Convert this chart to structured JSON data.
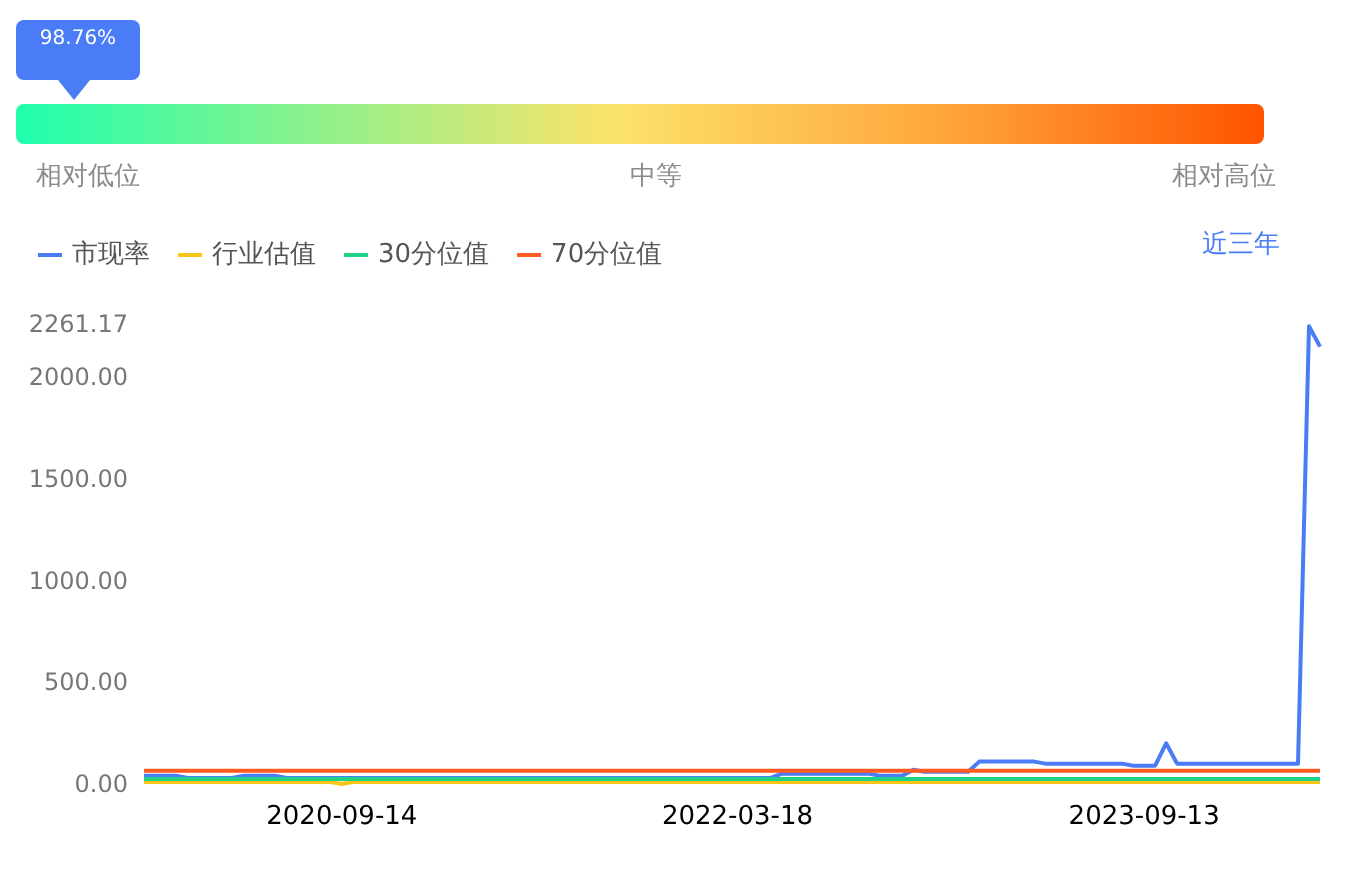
{
  "chart_data": [
    {
      "type": "other",
      "annotations": [
        "98.76%",
        "相对低位",
        "中等",
        "相对高位"
      ]
    },
    {
      "type": "line",
      "marker": "none",
      "legend": "top left",
      "grid": false,
      "annotations": [
        "近三年"
      ],
      "categories": [
        null,
        null,
        null,
        null,
        null,
        null,
        null,
        null,
        null,
        null,
        null,
        null,
        null,
        null,
        null,
        null,
        null,
        null,
        "2020-09-14",
        null,
        null,
        null,
        null,
        null,
        null,
        null,
        null,
        null,
        null,
        null,
        null,
        null,
        null,
        null,
        null,
        null,
        null,
        null,
        null,
        null,
        null,
        null,
        null,
        null,
        null,
        null,
        null,
        null,
        null,
        null,
        null,
        null,
        null,
        null,
        "2022-03-18",
        null,
        null,
        null,
        null,
        null,
        null,
        null,
        null,
        null,
        null,
        null,
        null,
        null,
        null,
        null,
        null,
        null,
        null,
        null,
        null,
        null,
        null,
        null,
        null,
        null,
        null,
        null,
        null,
        null,
        null,
        null,
        null,
        null,
        null,
        null,
        null,
        "2023-09-13",
        null,
        null,
        null,
        null,
        null,
        null,
        null,
        null,
        null,
        null,
        null,
        null,
        null,
        null,
        null,
        null
      ],
      "ylim": [
        0,
        2261.17
      ],
      "yticks": [
        {
          "value": 0,
          "label": "0.00"
        },
        {
          "value": 500,
          "label": "500.00"
        },
        {
          "value": 1000,
          "label": "1000.00"
        },
        {
          "value": 1500,
          "label": "1500.00"
        },
        {
          "value": 2000,
          "label": "2000.00"
        },
        {
          "value": 2261.17,
          "label": "2261.17"
        }
      ],
      "series": [
        {
          "name": "市现率",
          "color": "#4a7cf6",
          "values": [
            40,
            40,
            40,
            40,
            30,
            30,
            30,
            30,
            30,
            40,
            40,
            40,
            40,
            30,
            30,
            30,
            30,
            30,
            30,
            30,
            30,
            30,
            30,
            30,
            30,
            30,
            30,
            30,
            30,
            30,
            30,
            30,
            30,
            30,
            30,
            30,
            30,
            30,
            30,
            30,
            30,
            30,
            30,
            30,
            30,
            30,
            30,
            30,
            30,
            30,
            30,
            30,
            30,
            30,
            30,
            30,
            30,
            30,
            50,
            50,
            50,
            50,
            50,
            50,
            50,
            50,
            50,
            40,
            40,
            40,
            70,
            60,
            60,
            60,
            60,
            60,
            110,
            110,
            110,
            110,
            110,
            110,
            100,
            100,
            100,
            100,
            100,
            100,
            100,
            100,
            90,
            90,
            90,
            200,
            100,
            100,
            100,
            100,
            100,
            100,
            100,
            100,
            100,
            100,
            100,
            100,
            2250,
            2150
          ]
        },
        {
          "name": "行业估值",
          "color": "#f5c518",
          "values": [
            10,
            10,
            10,
            10,
            10,
            10,
            10,
            10,
            10,
            10,
            10,
            10,
            10,
            10,
            10,
            10,
            10,
            10,
            0,
            10,
            10,
            10,
            10,
            10,
            10,
            10,
            10,
            10,
            10,
            10,
            10,
            10,
            10,
            10,
            10,
            10,
            10,
            10,
            10,
            10,
            10,
            10,
            10,
            10,
            10,
            10,
            10,
            10,
            10,
            10,
            10,
            10,
            10,
            10,
            10,
            10,
            10,
            10,
            10,
            10,
            10,
            10,
            10,
            10,
            10,
            10,
            10,
            10,
            10,
            10,
            10,
            10,
            10,
            10,
            10,
            10,
            10,
            10,
            10,
            10,
            10,
            10,
            10,
            10,
            10,
            10,
            10,
            10,
            10,
            10,
            10,
            10,
            10,
            10,
            10,
            10,
            10,
            10,
            10,
            10,
            10,
            10,
            10,
            10,
            10,
            10,
            10,
            10
          ]
        },
        {
          "name": "30分位值",
          "color": "#1fd286",
          "values": [
            25,
            25,
            25,
            25,
            25,
            25,
            25,
            25,
            25,
            25,
            25,
            25,
            25,
            25,
            25,
            25,
            25,
            25,
            25,
            25,
            25,
            25,
            25,
            25,
            25,
            25,
            25,
            25,
            25,
            25,
            25,
            25,
            25,
            25,
            25,
            25,
            25,
            25,
            25,
            25,
            25,
            25,
            25,
            25,
            25,
            25,
            25,
            25,
            25,
            25,
            25,
            25,
            25,
            25,
            25,
            25,
            25,
            25,
            25,
            25,
            25,
            25,
            25,
            25,
            25,
            25,
            25,
            25,
            25,
            25,
            25,
            25,
            25,
            25,
            25,
            25,
            25,
            25,
            25,
            25,
            25,
            25,
            25,
            25,
            25,
            25,
            25,
            25,
            25,
            25,
            25,
            25,
            25,
            25,
            25,
            25,
            25,
            25,
            25,
            25,
            25,
            25,
            25,
            25,
            25,
            25,
            25,
            25
          ]
        },
        {
          "name": "70分位值",
          "color": "#ff5a1f",
          "values": [
            65,
            65,
            65,
            65,
            65,
            65,
            65,
            65,
            65,
            65,
            65,
            65,
            65,
            65,
            65,
            65,
            65,
            65,
            65,
            65,
            65,
            65,
            65,
            65,
            65,
            65,
            65,
            65,
            65,
            65,
            65,
            65,
            65,
            65,
            65,
            65,
            65,
            65,
            65,
            65,
            65,
            65,
            65,
            65,
            65,
            65,
            65,
            65,
            65,
            65,
            65,
            65,
            65,
            65,
            65,
            65,
            65,
            65,
            65,
            65,
            65,
            65,
            65,
            65,
            65,
            65,
            65,
            65,
            65,
            65,
            65,
            65,
            65,
            65,
            65,
            65,
            65,
            65,
            65,
            65,
            65,
            65,
            65,
            65,
            65,
            65,
            65,
            65,
            65,
            65,
            65,
            65,
            65,
            65,
            65,
            65,
            65,
            65,
            65,
            65,
            65,
            65,
            65,
            65,
            65,
            65,
            65,
            65
          ]
        }
      ]
    }
  ]
}
